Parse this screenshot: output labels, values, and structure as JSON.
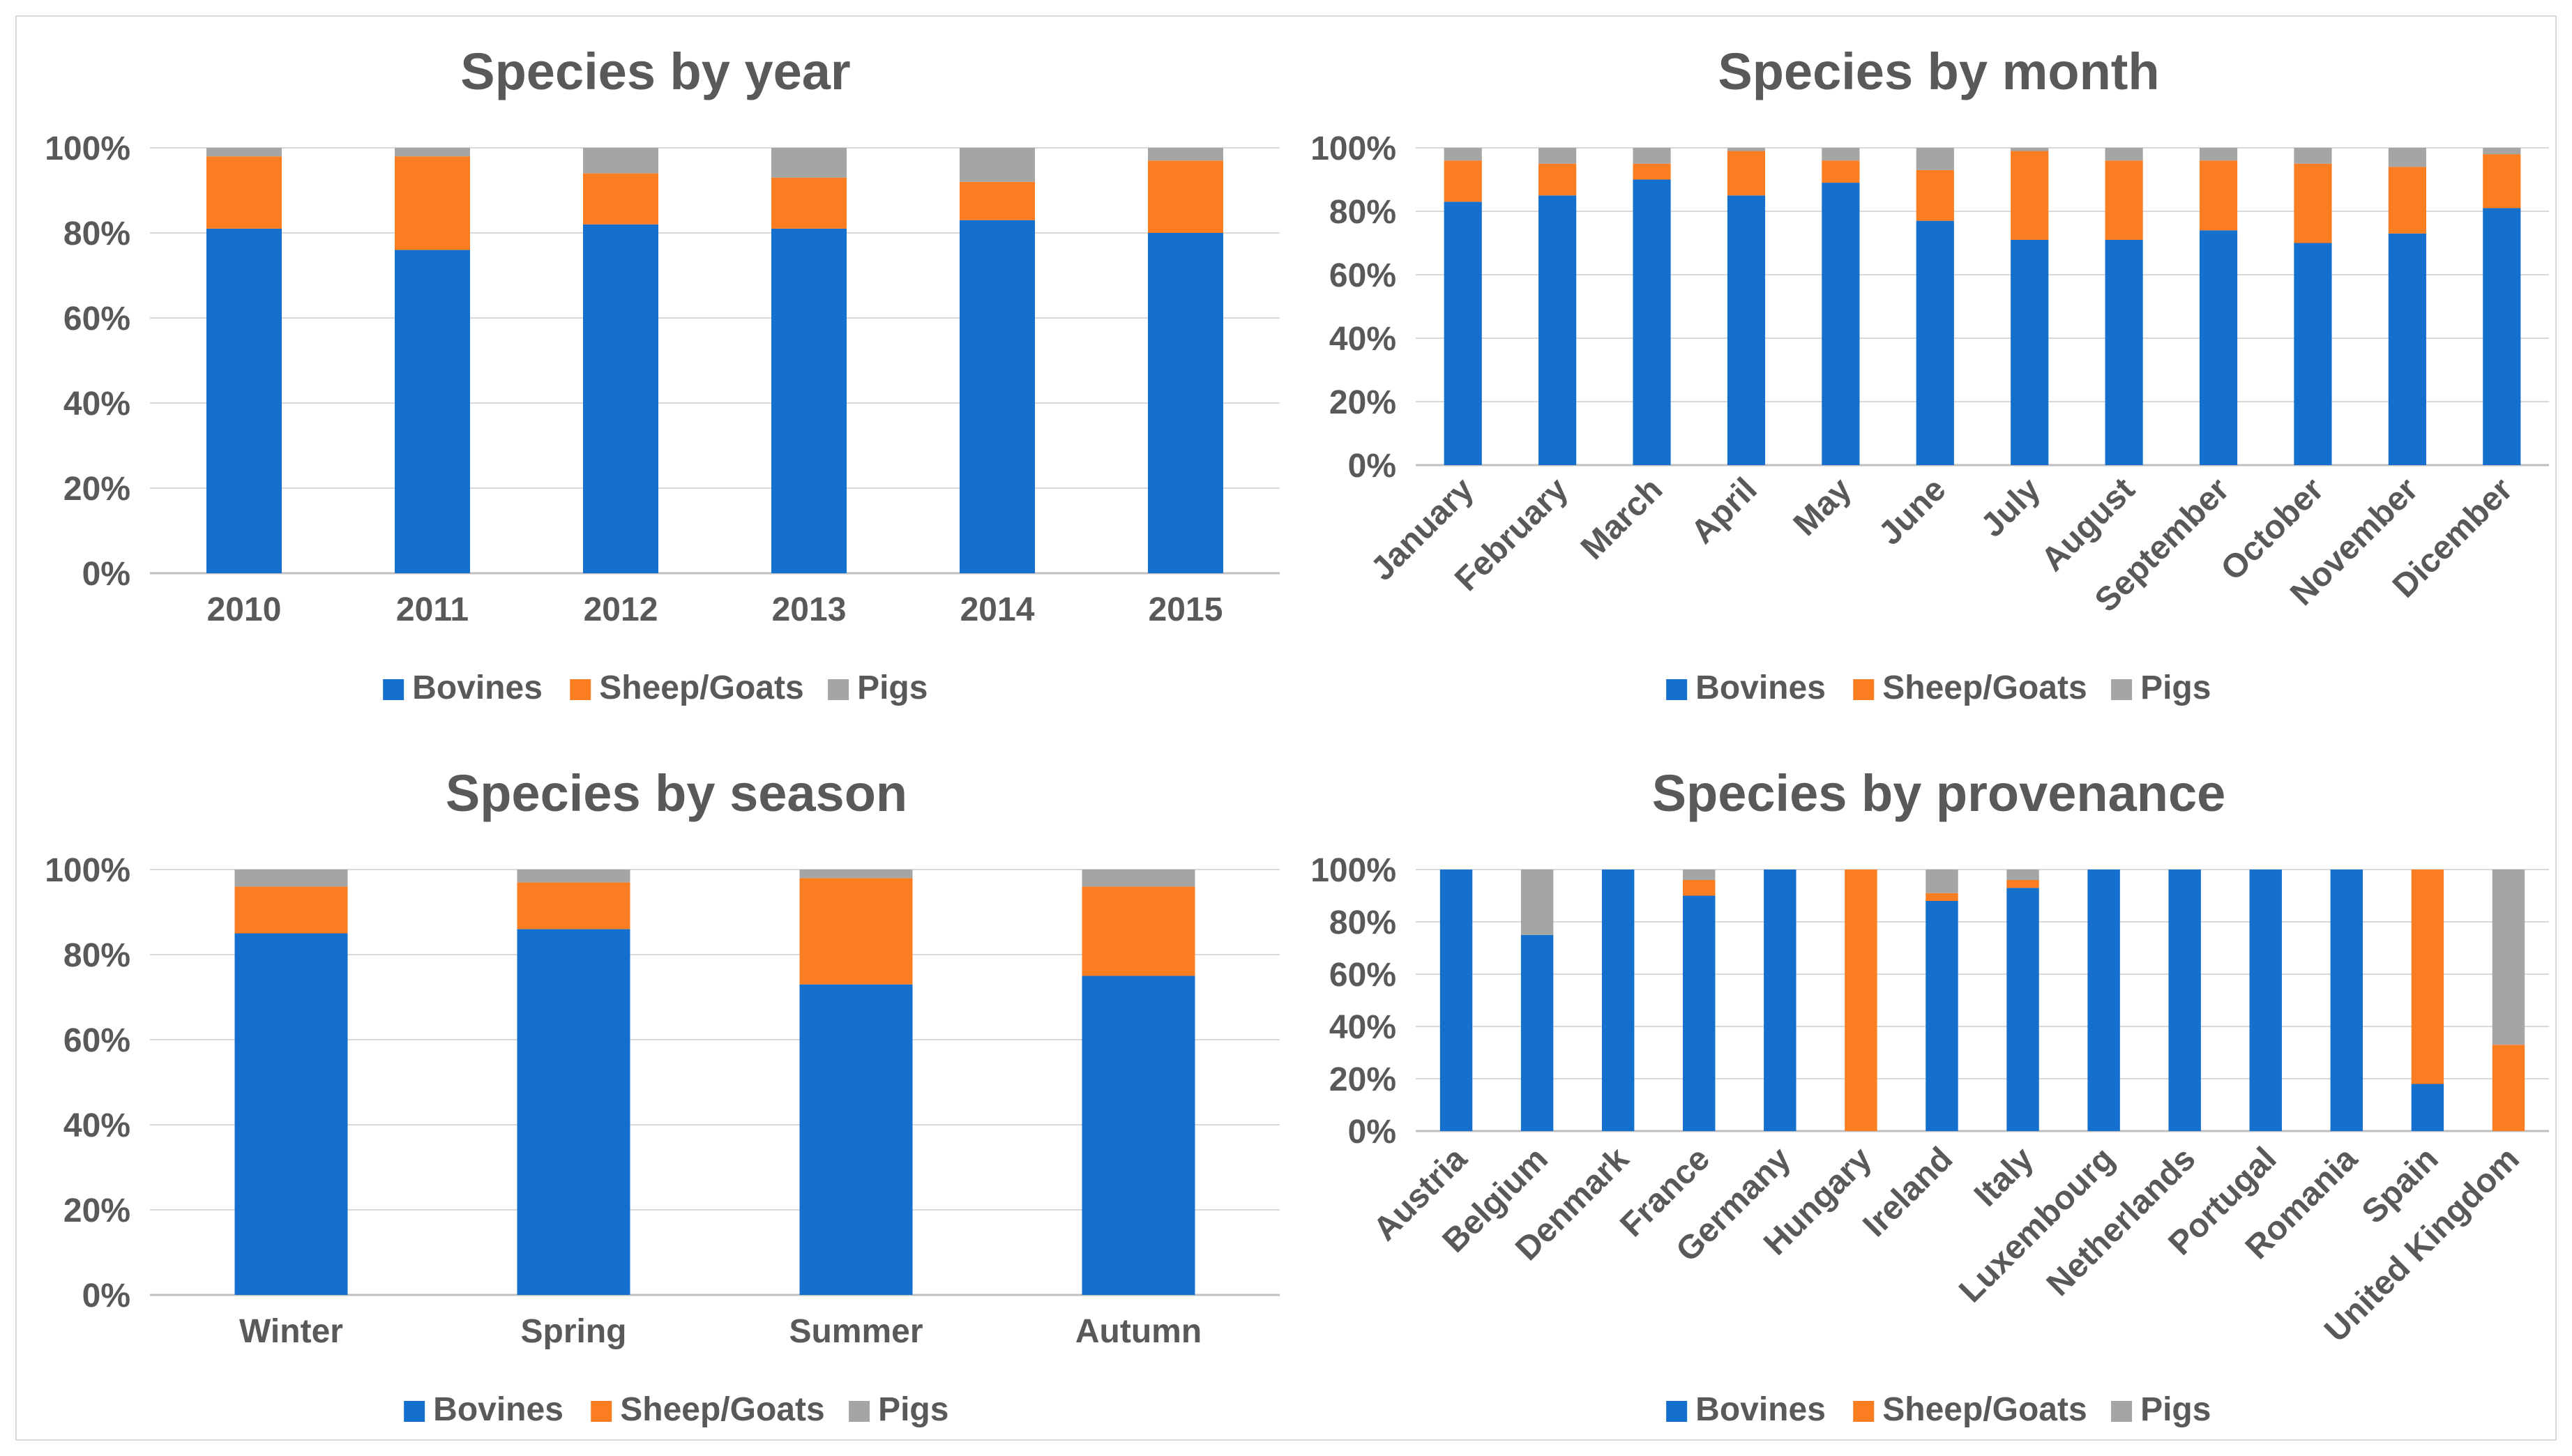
{
  "colors": {
    "Bovines": "#1570CD",
    "Sheep/Goats": "#FA7D22",
    "Pigs": "#A5A5A5"
  },
  "chart_data": [
    {
      "type": "bar",
      "stacked": true,
      "normalized": true,
      "title": "Species by year",
      "xlabel": "",
      "ylabel": "",
      "ylim": [
        0,
        100
      ],
      "yticks": [
        "0%",
        "20%",
        "40%",
        "60%",
        "80%",
        "100%"
      ],
      "categories": [
        "2010",
        "2011",
        "2012",
        "2013",
        "2014",
        "2015"
      ],
      "series": [
        {
          "name": "Bovines",
          "values": [
            81,
            76,
            82,
            81,
            83,
            80
          ]
        },
        {
          "name": "Sheep/Goats",
          "values": [
            17,
            22,
            12,
            12,
            9,
            17
          ]
        },
        {
          "name": "Pigs",
          "values": [
            2,
            2,
            6,
            7,
            8,
            3
          ]
        }
      ],
      "legend": "bottom",
      "grid": true
    },
    {
      "type": "bar",
      "stacked": true,
      "normalized": true,
      "title": "Species by month",
      "xlabel": "",
      "ylabel": "",
      "ylim": [
        0,
        100
      ],
      "yticks": [
        "0%",
        "20%",
        "40%",
        "60%",
        "80%",
        "100%"
      ],
      "categories": [
        "January",
        "February",
        "March",
        "April",
        "May",
        "June",
        "July",
        "August",
        "September",
        "October",
        "November",
        "Dicember"
      ],
      "series": [
        {
          "name": "Bovines",
          "values": [
            83,
            85,
            90,
            85,
            89,
            77,
            71,
            71,
            74,
            70,
            73,
            81
          ]
        },
        {
          "name": "Sheep/Goats",
          "values": [
            13,
            10,
            5,
            14,
            7,
            16,
            28,
            25,
            22,
            25,
            21,
            17
          ]
        },
        {
          "name": "Pigs",
          "values": [
            4,
            5,
            5,
            1,
            4,
            7,
            1,
            4,
            4,
            5,
            6,
            2
          ]
        }
      ],
      "legend": "bottom",
      "grid": true
    },
    {
      "type": "bar",
      "stacked": true,
      "normalized": true,
      "title": "Species by season",
      "xlabel": "",
      "ylabel": "",
      "ylim": [
        0,
        100
      ],
      "yticks": [
        "0%",
        "20%",
        "40%",
        "60%",
        "80%",
        "100%"
      ],
      "categories": [
        "Winter",
        "Spring",
        "Summer",
        "Autumn"
      ],
      "series": [
        {
          "name": "Bovines",
          "values": [
            85,
            86,
            73,
            75
          ]
        },
        {
          "name": "Sheep/Goats",
          "values": [
            11,
            11,
            25,
            21
          ]
        },
        {
          "name": "Pigs",
          "values": [
            4,
            3,
            2,
            4
          ]
        }
      ],
      "legend": "bottom",
      "grid": true
    },
    {
      "type": "bar",
      "stacked": true,
      "normalized": true,
      "title": "Species by provenance",
      "xlabel": "",
      "ylabel": "",
      "ylim": [
        0,
        100
      ],
      "yticks": [
        "0%",
        "20%",
        "40%",
        "60%",
        "80%",
        "100%"
      ],
      "categories": [
        "Austria",
        "Belgium",
        "Denmark",
        "France",
        "Germany",
        "Hungary",
        "Ireland",
        "Italy",
        "Luxembourg",
        "Netherlands",
        "Portugal",
        "Romania",
        "Spain",
        "United Kingdom"
      ],
      "series": [
        {
          "name": "Bovines",
          "values": [
            100,
            75,
            100,
            90,
            100,
            0,
            88,
            93,
            100,
            100,
            100,
            100,
            18,
            0
          ]
        },
        {
          "name": "Sheep/Goats",
          "values": [
            0,
            0,
            0,
            6,
            0,
            100,
            3,
            3,
            0,
            0,
            0,
            0,
            82,
            33
          ]
        },
        {
          "name": "Pigs",
          "values": [
            0,
            25,
            0,
            4,
            0,
            0,
            9,
            4,
            0,
            0,
            0,
            0,
            0,
            67
          ]
        }
      ],
      "legend": "bottom",
      "grid": true
    }
  ]
}
